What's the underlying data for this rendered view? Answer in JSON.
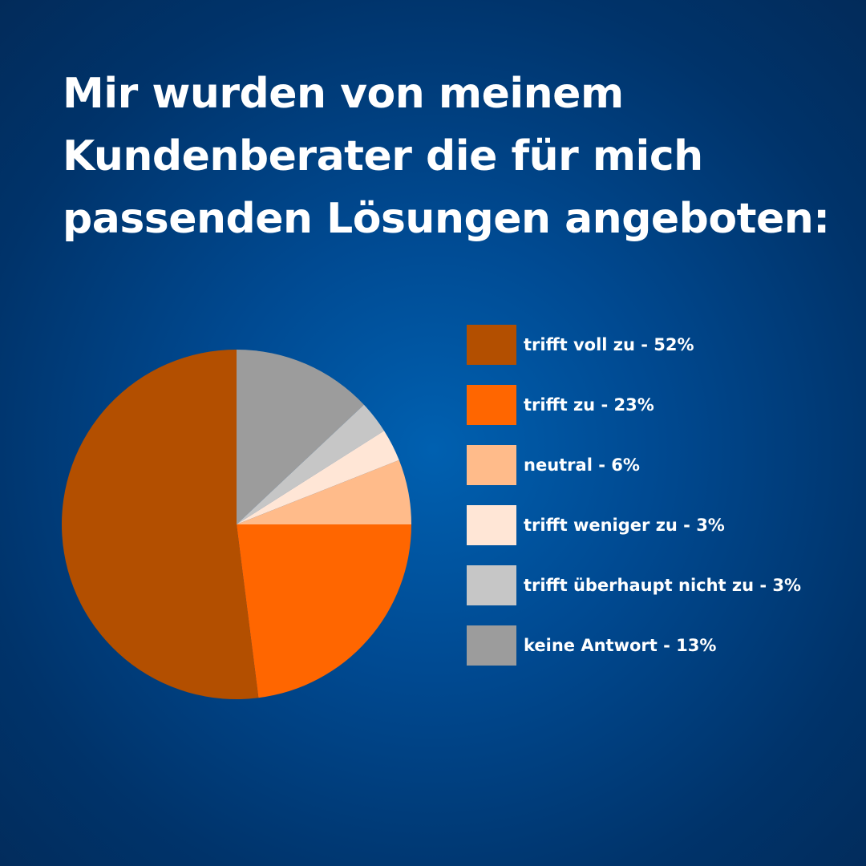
{
  "chart_data": {
    "type": "pie",
    "title": "Mir wurden von meinem Kundenberater die für mich passenden Lösungen angeboten:",
    "title_lines": [
      "Mir wurden von meinem",
      "Kundenberater die für mich",
      "passenden Lösungen angeboten:"
    ],
    "start": "top",
    "direction": "counterclockwise",
    "legend_position": "right",
    "slices": [
      {
        "label": "trifft voll zu - 52%",
        "name": "trifft voll zu",
        "value": 52,
        "color": "#b34f00"
      },
      {
        "label": "trifft zu - 23%",
        "name": "trifft zu",
        "value": 23,
        "color": "#ff6600"
      },
      {
        "label": "neutral - 6%",
        "name": "neutral",
        "value": 6,
        "color": "#ffbb8a"
      },
      {
        "label": "trifft weniger zu - 3%",
        "name": "trifft weniger zu",
        "value": 3,
        "color": "#ffe6d6"
      },
      {
        "label": "trifft überhaupt nicht zu - 3%",
        "name": "trifft überhaupt nicht zu",
        "value": 3,
        "color": "#c6c6c6"
      },
      {
        "label": "keine Antwort - 13%",
        "name": "keine Antwort",
        "value": 13,
        "color": "#9c9c9c"
      }
    ]
  }
}
